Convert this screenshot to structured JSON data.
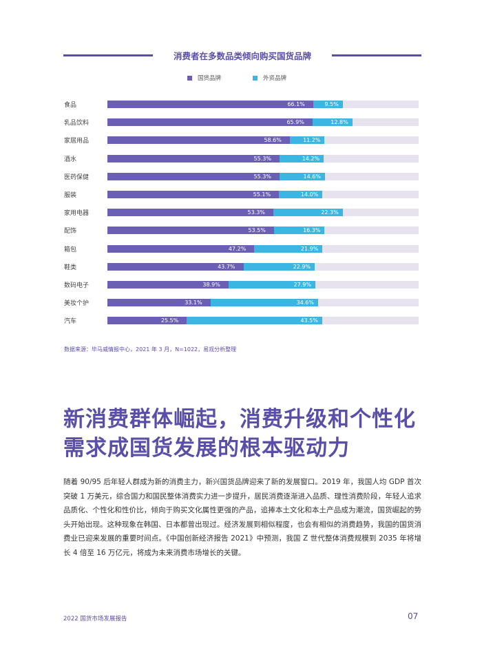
{
  "page": {
    "chart_title": "消费者在多数品类倾向购买国货品牌",
    "source": "数据来源：毕马威情报中心，2021 年 3 月，N=1022，易观分析整理",
    "headline_line1": "新消费群体崛起，消费升级和个性化",
    "headline_line2": "需求成国货发展的根本驱动力",
    "body": "随着 90/95 后年轻人群成为新的消费主力，新兴国货品牌迎来了新的发展窗口。2019 年，我国人均 GDP 首次突破 1 万美元，综合国力和国民整体消费实力进一步提升，居民消费逐渐进入品质、理性消费阶段，年轻人追求品质化、个性化和性价比，倾向于购买文化属性更强的产品，追捧本土文化和本土产品成为潮流，国货崛起的势头开始出现。这种现象在韩国、日本都曾出现过。经济发展到相似程度，也会有相似的消费趋势，我国的国货消费业已迎来发展的重要时间点。《中国创新经济报告 2021》中预测，我国 Z 世代整体消费规模到 2035 年将增长 4 倍至 16 万亿元，将成为未来消费市场增长的关键。",
    "footer_left": "2022 国货市场发展报告",
    "footer_right": "07"
  },
  "colors": {
    "domestic": "#6a5fb4",
    "foreign": "#3bb6e2",
    "track": "#e6e3ef",
    "accent": "#5a4fa8"
  },
  "chart_data": {
    "type": "bar",
    "orientation": "horizontal",
    "stacked": true,
    "title": "消费者在多数品类倾向购买国货品牌",
    "legend_position": "top",
    "xlim": [
      0,
      100
    ],
    "categories": [
      "食品",
      "乳品饮料",
      "家居用品",
      "酒水",
      "医药保健",
      "服装",
      "家用电器",
      "配饰",
      "箱包",
      "鞋类",
      "数码电子",
      "美妆个护",
      "汽车"
    ],
    "series": [
      {
        "name": "国货品牌",
        "values": [
          66.1,
          65.9,
          58.6,
          55.3,
          55.3,
          55.1,
          53.3,
          53.5,
          47.2,
          43.7,
          38.9,
          33.1,
          25.5
        ],
        "labels": [
          "66.1%",
          "65.9%",
          "58.6%",
          "55.3%",
          "55.3%",
          "55.1%",
          "53.3%",
          "53.5%",
          "47.2%",
          "43.7%",
          "38.9%",
          "33.1%",
          "25.5%"
        ]
      },
      {
        "name": "外资品牌",
        "values": [
          9.5,
          12.8,
          11.2,
          14.2,
          14.6,
          14.0,
          22.3,
          16.3,
          21.9,
          22.9,
          27.9,
          34.6,
          43.5
        ],
        "labels": [
          "9.5%",
          "12.8%",
          "11.2%",
          "14.2%",
          "14.6%",
          "14.0%",
          "22.3%",
          "16.3%",
          "21.9%",
          "22.9%",
          "27.9%",
          "34.6%",
          "43.5%"
        ]
      }
    ]
  }
}
